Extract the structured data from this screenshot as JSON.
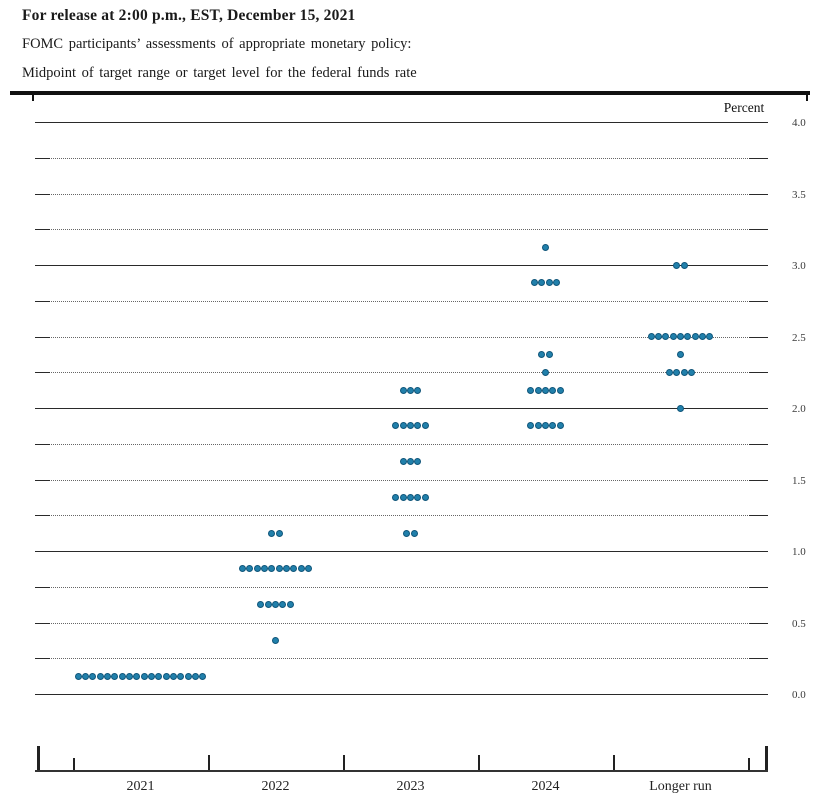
{
  "header": {
    "release_line": "For release at 2:00 p.m., EST, December 15, 2021",
    "subtitle1": "FOMC participants’ assessments of appropriate monetary policy:",
    "subtitle2": "Midpoint of target range or target level for the federal funds rate"
  },
  "chart_data": {
    "type": "scatter",
    "title": "FOMC dot plot: midpoint of target range or target level for the federal funds rate",
    "ylabel": "Percent",
    "ylim": [
      0.0,
      4.0
    ],
    "ytick_label_interval": 0.5,
    "grid_interval": 0.25,
    "grid": true,
    "legend_position": "none",
    "categories": [
      "2021",
      "2022",
      "2023",
      "2024",
      "Longer run"
    ],
    "dot_color": "#2180ab",
    "series": [
      {
        "name": "2021",
        "dots": [
          {
            "rate": 0.125,
            "count": 18
          }
        ]
      },
      {
        "name": "2022",
        "dots": [
          {
            "rate": 1.125,
            "count": 2
          },
          {
            "rate": 0.875,
            "count": 10
          },
          {
            "rate": 0.625,
            "count": 5
          },
          {
            "rate": 0.375,
            "count": 1
          }
        ]
      },
      {
        "name": "2023",
        "dots": [
          {
            "rate": 2.125,
            "count": 3
          },
          {
            "rate": 1.875,
            "count": 5
          },
          {
            "rate": 1.625,
            "count": 3
          },
          {
            "rate": 1.375,
            "count": 5
          },
          {
            "rate": 1.125,
            "count": 2
          }
        ]
      },
      {
        "name": "2024",
        "dots": [
          {
            "rate": 3.125,
            "count": 1
          },
          {
            "rate": 2.875,
            "count": 4
          },
          {
            "rate": 2.375,
            "count": 2
          },
          {
            "rate": 2.25,
            "count": 1
          },
          {
            "rate": 2.125,
            "count": 5
          },
          {
            "rate": 1.875,
            "count": 5
          }
        ]
      },
      {
        "name": "Longer run",
        "dots": [
          {
            "rate": 3.0,
            "count": 2
          },
          {
            "rate": 2.5,
            "count": 9
          },
          {
            "rate": 2.375,
            "count": 1
          },
          {
            "rate": 2.25,
            "count": 4
          },
          {
            "rate": 2.0,
            "count": 1
          }
        ]
      }
    ]
  }
}
